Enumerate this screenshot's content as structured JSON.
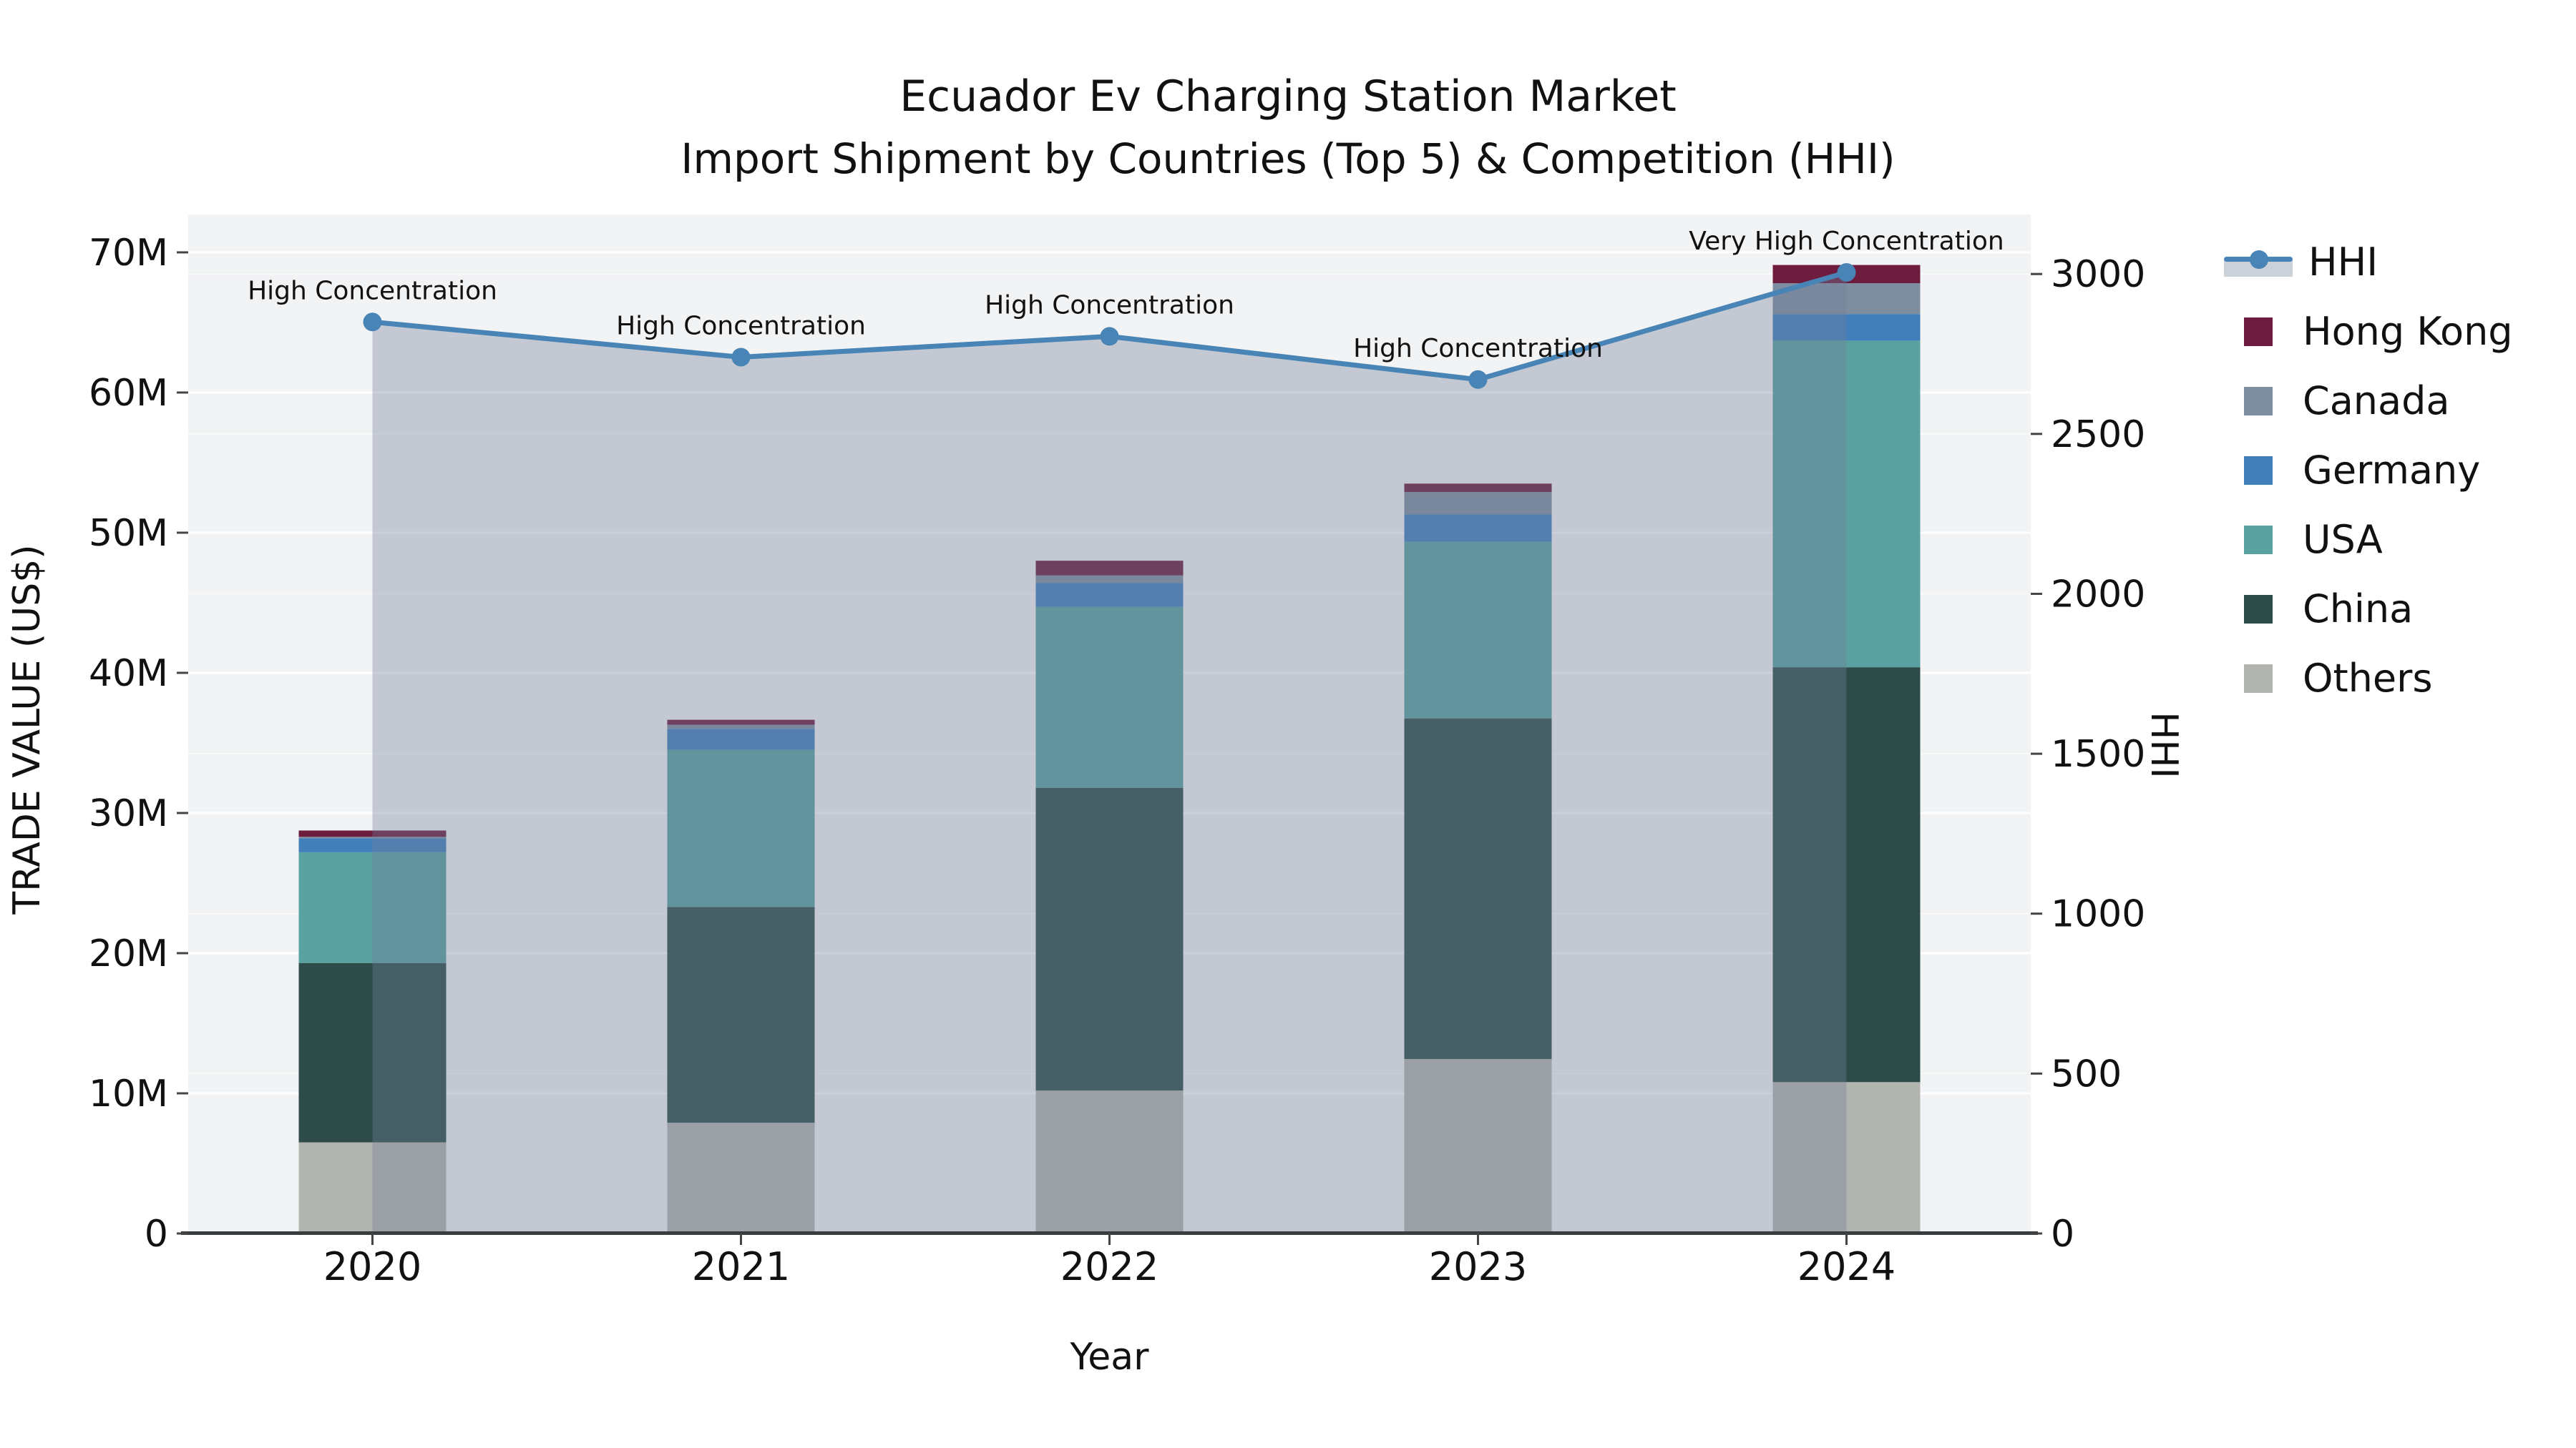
{
  "chart_data": {
    "type": "bar+line",
    "title": "Ecuador Ev Charging Station Market",
    "subtitle": "Import Shipment by Countries (Top 5) & Competition (HHI)",
    "xlabel": "Year",
    "categories": [
      "2020",
      "2021",
      "2022",
      "2023",
      "2024"
    ],
    "left_axis": {
      "label": "TRADE VALUE (US$)",
      "tick_labels": [
        "0",
        "10M",
        "20M",
        "30M",
        "40M",
        "50M",
        "60M",
        "70M"
      ],
      "tick_values": [
        0,
        10,
        20,
        30,
        40,
        50,
        60,
        70
      ],
      "unit": "million US$",
      "ylim": [
        0,
        72.7
      ]
    },
    "right_axis": {
      "label": "HHI",
      "tick_labels": [
        "0",
        "500",
        "1000",
        "1500",
        "2000",
        "2500",
        "3000"
      ],
      "tick_values": [
        0,
        500,
        1000,
        1500,
        2000,
        2500,
        3000
      ],
      "ylim": [
        0,
        3186
      ]
    },
    "series": [
      {
        "name": "Others",
        "color": "#b2b4af",
        "values": [
          6.5,
          7.9,
          10.2,
          12.45,
          10.8
        ]
      },
      {
        "name": "China",
        "color": "#2d4b48",
        "values": [
          12.8,
          15.4,
          21.6,
          24.3,
          29.6
        ]
      },
      {
        "name": "USA",
        "color": "#5aa1a2",
        "values": [
          7.9,
          11.2,
          12.9,
          12.6,
          23.3
        ]
      },
      {
        "name": "Germany",
        "color": "#407fba",
        "values": [
          1.0,
          1.5,
          1.7,
          1.95,
          1.9
        ]
      },
      {
        "name": "Canada",
        "color": "#7e8da0",
        "values": [
          0.1,
          0.3,
          0.55,
          1.6,
          2.2
        ]
      },
      {
        "name": "Hong Kong",
        "color": "#6d1c3e",
        "values": [
          0.45,
          0.35,
          1.05,
          0.6,
          1.3
        ]
      }
    ],
    "hhi_line": {
      "name": "HHI",
      "values": [
        2850,
        2740,
        2805,
        2670,
        3005
      ],
      "line_color": "#4884b5",
      "band_color": "#717f97",
      "band_opacity": 0.37
    },
    "annotations": [
      "High Concentration",
      "High Concentration",
      "High Concentration",
      "High Concentration",
      "Very High Concentration"
    ],
    "legend": [
      {
        "key": "hhi",
        "label": "HHI",
        "color": "#4884b5"
      },
      {
        "key": "hongkong",
        "label": "Hong Kong",
        "color": "#6d1c3e"
      },
      {
        "key": "canada",
        "label": "Canada",
        "color": "#7e8da0"
      },
      {
        "key": "germany",
        "label": "Germany",
        "color": "#407fba"
      },
      {
        "key": "usa",
        "label": "USA",
        "color": "#5aa1a2"
      },
      {
        "key": "china",
        "label": "China",
        "color": "#2d4b48"
      },
      {
        "key": "others",
        "label": "Others",
        "color": "#b2b4af"
      }
    ],
    "grid": true,
    "legend_position": "right",
    "plot_bg_color": "#f2f3f4",
    "text_color": "#111111"
  }
}
